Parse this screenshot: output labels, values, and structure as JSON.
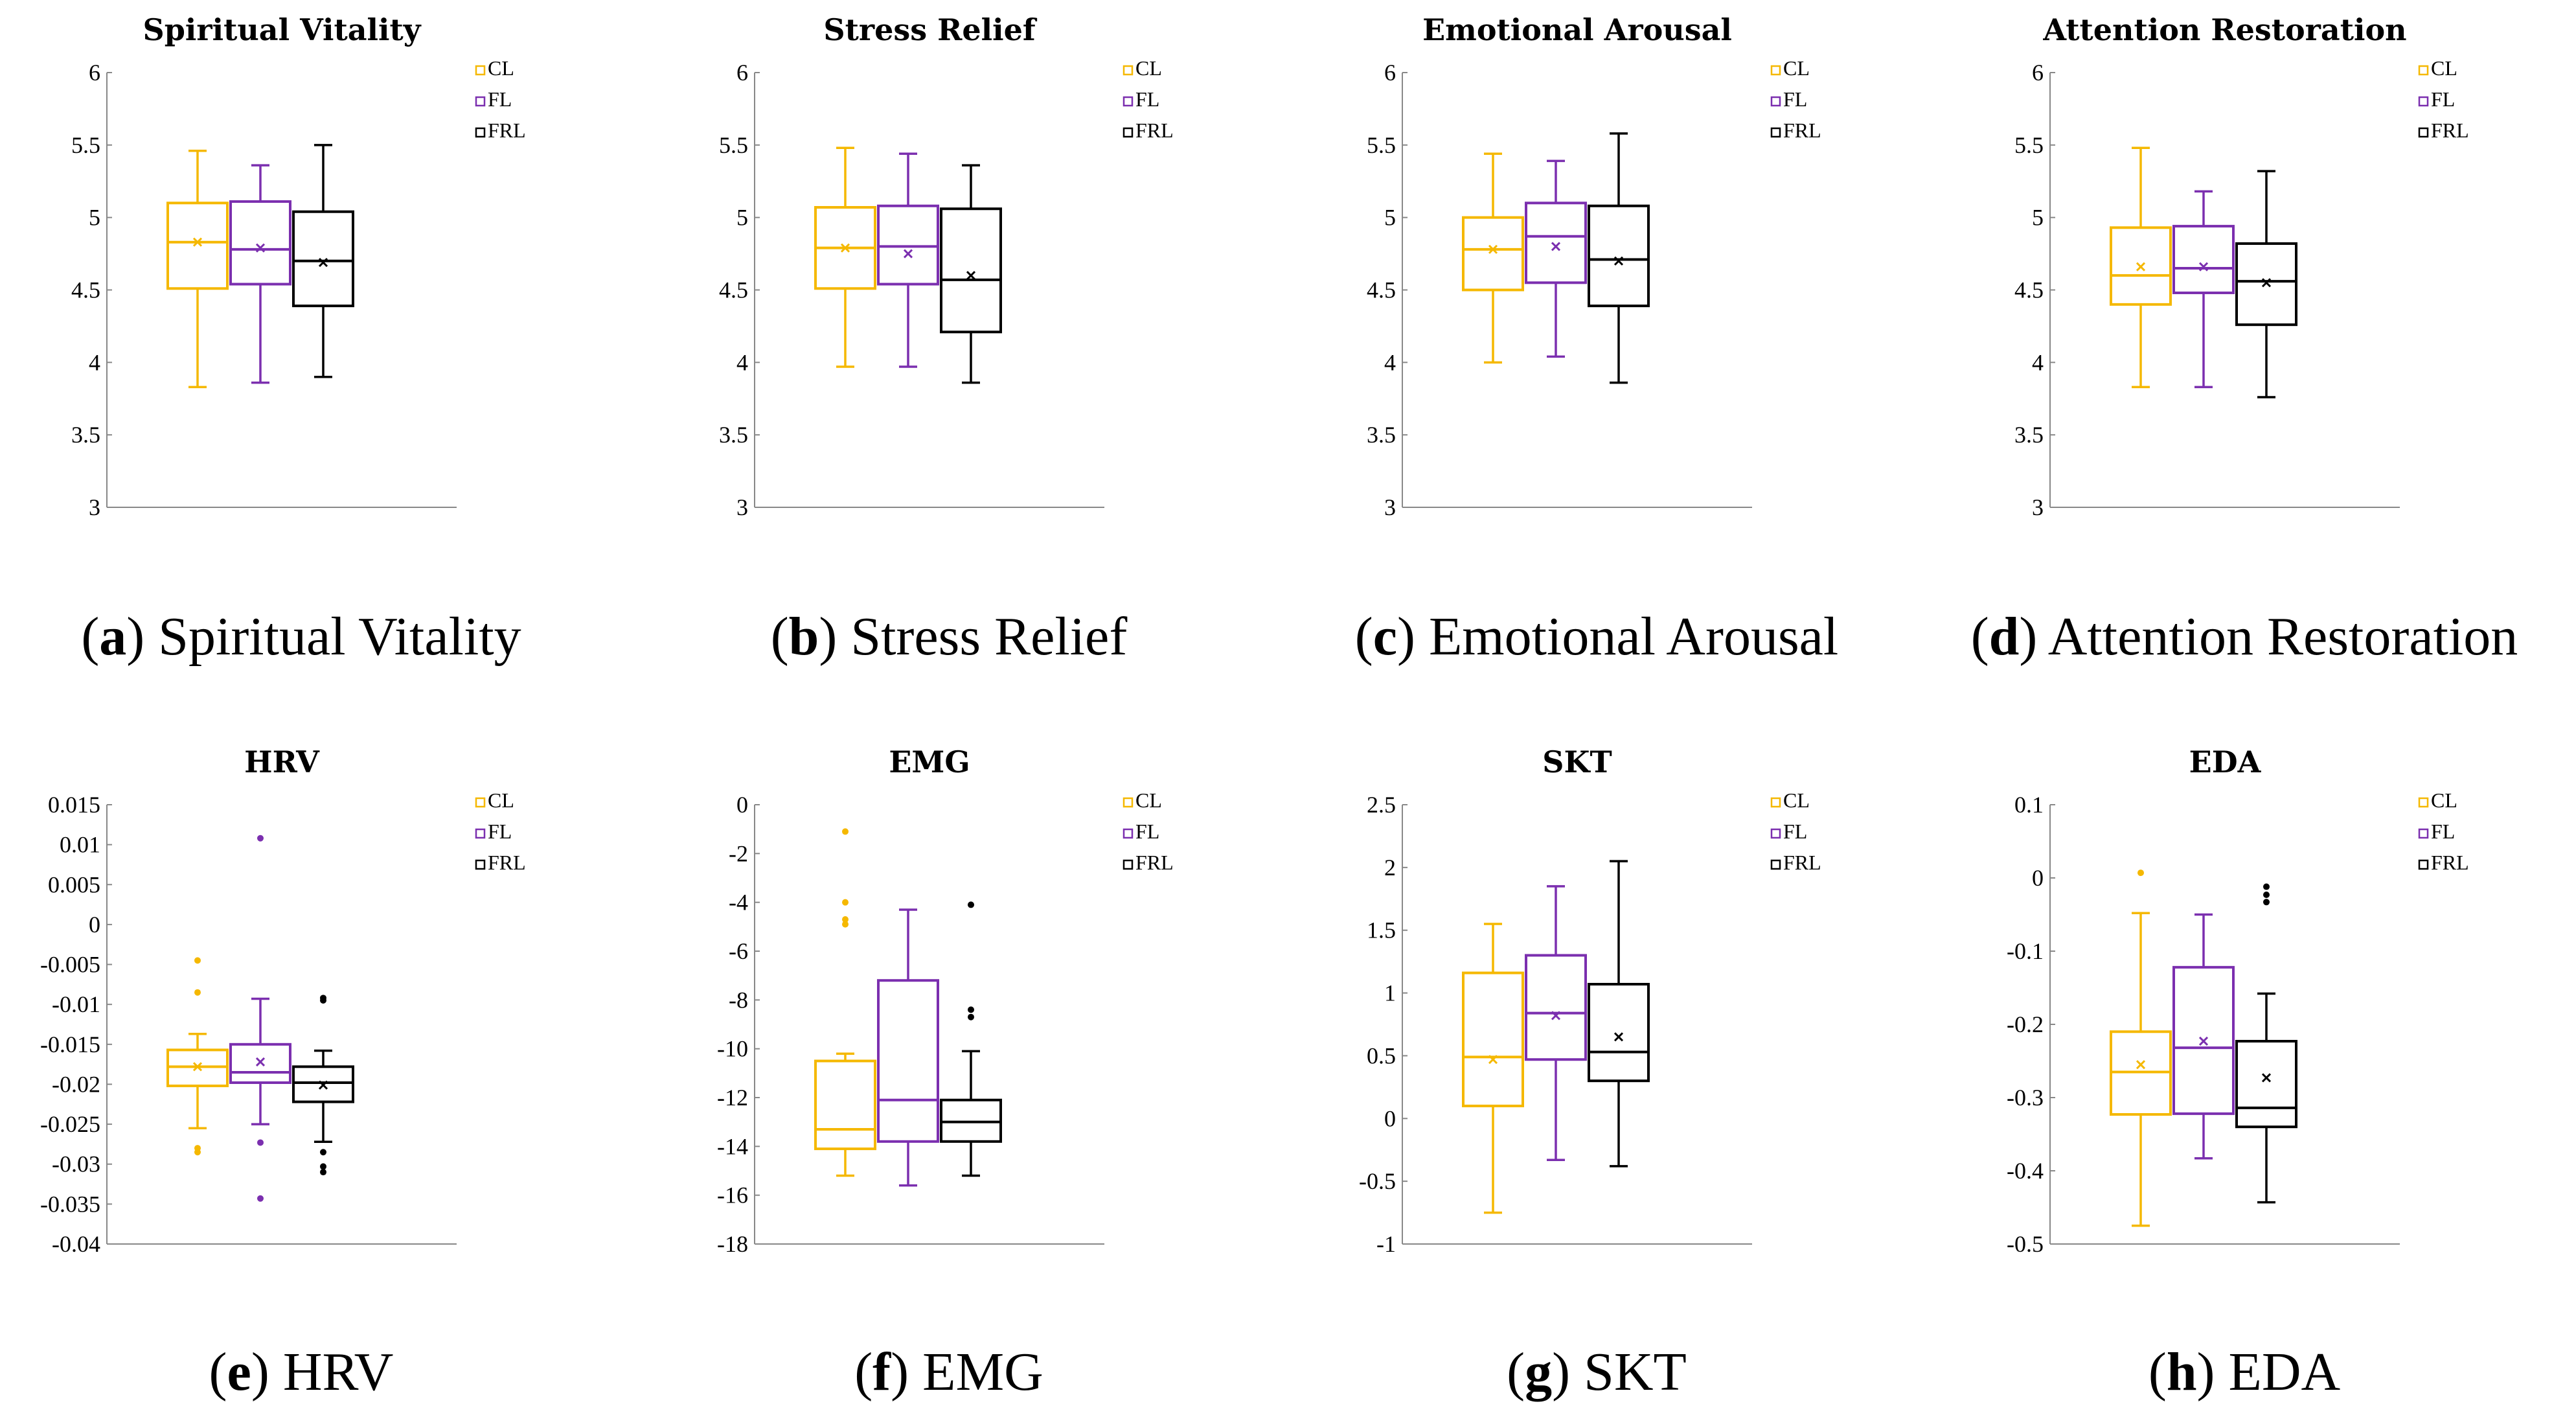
{
  "colors": {
    "CL": "#F5B800",
    "FL": "#7B2FAF",
    "FRL": "#000000"
  },
  "legend": [
    "CL",
    "FL",
    "FRL"
  ],
  "chart_data": [
    {
      "type": "box",
      "title": "Spiritual Vitality",
      "caption": {
        "letter": "a",
        "text": "Spiritual Vitality"
      },
      "ylim": [
        3,
        6
      ],
      "yticks": [
        "3",
        "3.5",
        "4",
        "4.5",
        "5",
        "5.5",
        "6"
      ],
      "series": [
        {
          "name": "CL",
          "whisker_low": 3.83,
          "q1": 4.51,
          "median": 4.83,
          "q3": 5.1,
          "whisker_high": 5.46,
          "mean": 4.83,
          "outliers": []
        },
        {
          "name": "FL",
          "whisker_low": 3.86,
          "q1": 4.54,
          "median": 4.78,
          "q3": 5.11,
          "whisker_high": 5.36,
          "mean": 4.79,
          "outliers": []
        },
        {
          "name": "FRL",
          "whisker_low": 3.9,
          "q1": 4.39,
          "median": 4.7,
          "q3": 5.04,
          "whisker_high": 5.5,
          "mean": 4.69,
          "outliers": []
        }
      ]
    },
    {
      "type": "box",
      "title": "Stress Relief",
      "caption": {
        "letter": "b",
        "text": "Stress Relief"
      },
      "ylim": [
        3,
        6
      ],
      "yticks": [
        "3",
        "3.5",
        "4",
        "4.5",
        "5",
        "5.5",
        "6"
      ],
      "series": [
        {
          "name": "CL",
          "whisker_low": 3.97,
          "q1": 4.51,
          "median": 4.79,
          "q3": 5.07,
          "whisker_high": 5.48,
          "mean": 4.79,
          "outliers": []
        },
        {
          "name": "FL",
          "whisker_low": 3.97,
          "q1": 4.54,
          "median": 4.8,
          "q3": 5.08,
          "whisker_high": 5.44,
          "mean": 4.75,
          "outliers": []
        },
        {
          "name": "FRL",
          "whisker_low": 3.86,
          "q1": 4.21,
          "median": 4.57,
          "q3": 5.06,
          "whisker_high": 5.36,
          "mean": 4.6,
          "outliers": []
        }
      ]
    },
    {
      "type": "box",
      "title": "Emotional Arousal",
      "caption": {
        "letter": "c",
        "text": "Emotional Arousal"
      },
      "ylim": [
        3,
        6
      ],
      "yticks": [
        "3",
        "3.5",
        "4",
        "4.5",
        "5",
        "5.5",
        "6"
      ],
      "series": [
        {
          "name": "CL",
          "whisker_low": 4.0,
          "q1": 4.5,
          "median": 4.78,
          "q3": 5.0,
          "whisker_high": 5.44,
          "mean": 4.78,
          "outliers": []
        },
        {
          "name": "FL",
          "whisker_low": 4.04,
          "q1": 4.55,
          "median": 4.87,
          "q3": 5.1,
          "whisker_high": 5.39,
          "mean": 4.8,
          "outliers": []
        },
        {
          "name": "FRL",
          "whisker_low": 3.86,
          "q1": 4.39,
          "median": 4.71,
          "q3": 5.08,
          "whisker_high": 5.58,
          "mean": 4.7,
          "outliers": []
        }
      ]
    },
    {
      "type": "box",
      "title": "Attention Restoration",
      "caption": {
        "letter": "d",
        "text": "Attention Restoration"
      },
      "ylim": [
        3,
        6
      ],
      "yticks": [
        "3",
        "3.5",
        "4",
        "4.5",
        "5",
        "5.5",
        "6"
      ],
      "series": [
        {
          "name": "CL",
          "whisker_low": 3.83,
          "q1": 4.4,
          "median": 4.6,
          "q3": 4.93,
          "whisker_high": 5.48,
          "mean": 4.66,
          "outliers": []
        },
        {
          "name": "FL",
          "whisker_low": 3.83,
          "q1": 4.48,
          "median": 4.65,
          "q3": 4.94,
          "whisker_high": 5.18,
          "mean": 4.66,
          "outliers": []
        },
        {
          "name": "FRL",
          "whisker_low": 3.76,
          "q1": 4.26,
          "median": 4.56,
          "q3": 4.82,
          "whisker_high": 5.32,
          "mean": 4.55,
          "outliers": []
        }
      ]
    },
    {
      "type": "box",
      "title": "HRV",
      "caption": {
        "letter": "e",
        "text": "HRV"
      },
      "ylim": [
        -0.04,
        0.015
      ],
      "yticks": [
        "-0.04",
        "-0.035",
        "-0.03",
        "-0.025",
        "-0.02",
        "-0.015",
        "-0.01",
        "-0.005",
        "0",
        "0.005",
        "0.01",
        "0.015"
      ],
      "series": [
        {
          "name": "CL",
          "whisker_low": -0.0255,
          "q1": -0.0202,
          "median": -0.0178,
          "q3": -0.0157,
          "whisker_high": -0.0137,
          "mean": -0.0178,
          "outliers": [
            -0.0045,
            -0.0085,
            -0.028,
            -0.0285
          ]
        },
        {
          "name": "FL",
          "whisker_low": -0.025,
          "q1": -0.0198,
          "median": -0.0185,
          "q3": -0.015,
          "whisker_high": -0.0093,
          "mean": -0.0172,
          "outliers": [
            0.0108,
            -0.0273,
            -0.0343
          ]
        },
        {
          "name": "FRL",
          "whisker_low": -0.0272,
          "q1": -0.0222,
          "median": -0.0198,
          "q3": -0.0178,
          "whisker_high": -0.0158,
          "mean": -0.0201,
          "outliers": [
            -0.0092,
            -0.0095,
            -0.0285,
            -0.0303,
            -0.031
          ]
        }
      ]
    },
    {
      "type": "box",
      "title": "EMG",
      "caption": {
        "letter": "f",
        "text": "EMG"
      },
      "ylim": [
        -18,
        0
      ],
      "yticks": [
        "-18",
        "-16",
        "-14",
        "-12",
        "-10",
        "-8",
        "-6",
        "-4",
        "-2",
        "0"
      ],
      "series": [
        {
          "name": "CL",
          "whisker_low": -15.2,
          "q1": -14.1,
          "median": -13.3,
          "q3": -10.5,
          "whisker_high": -10.2,
          "mean": null,
          "outliers": [
            -1.1,
            -4.0,
            -4.7,
            -4.9
          ]
        },
        {
          "name": "FL",
          "whisker_low": -15.6,
          "q1": -13.8,
          "median": -12.1,
          "q3": -7.2,
          "whisker_high": -4.3,
          "mean": null,
          "outliers": []
        },
        {
          "name": "FRL",
          "whisker_low": -15.2,
          "q1": -13.8,
          "median": -13.0,
          "q3": -12.1,
          "whisker_high": -10.1,
          "mean": null,
          "outliers": [
            -4.1,
            -8.4,
            -8.7
          ]
        }
      ]
    },
    {
      "type": "box",
      "title": "SKT",
      "caption": {
        "letter": "g",
        "text": "SKT"
      },
      "ylim": [
        -1,
        2.5
      ],
      "yticks": [
        "-1",
        "-0.5",
        "0",
        "0.5",
        "1",
        "1.5",
        "2",
        "2.5"
      ],
      "series": [
        {
          "name": "CL",
          "whisker_low": -0.75,
          "q1": 0.1,
          "median": 0.49,
          "q3": 1.16,
          "whisker_high": 1.55,
          "mean": 0.47,
          "outliers": []
        },
        {
          "name": "FL",
          "whisker_low": -0.33,
          "q1": 0.47,
          "median": 0.84,
          "q3": 1.3,
          "whisker_high": 1.85,
          "mean": 0.82,
          "outliers": []
        },
        {
          "name": "FRL",
          "whisker_low": -0.38,
          "q1": 0.3,
          "median": 0.53,
          "q3": 1.07,
          "whisker_high": 2.05,
          "mean": 0.65,
          "outliers": []
        }
      ]
    },
    {
      "type": "box",
      "title": "EDA",
      "caption": {
        "letter": "h",
        "text": "EDA"
      },
      "ylim": [
        -0.5,
        0.1
      ],
      "yticks": [
        "-0.5",
        "-0.4",
        "-0.3",
        "-0.2",
        "-0.1",
        "0",
        "0.1"
      ],
      "series": [
        {
          "name": "CL",
          "whisker_low": -0.475,
          "q1": -0.323,
          "median": -0.265,
          "q3": -0.21,
          "whisker_high": -0.048,
          "mean": -0.255,
          "outliers": [
            0.007
          ]
        },
        {
          "name": "FL",
          "whisker_low": -0.383,
          "q1": -0.322,
          "median": -0.232,
          "q3": -0.122,
          "whisker_high": -0.05,
          "mean": -0.223,
          "outliers": []
        },
        {
          "name": "FRL",
          "whisker_low": -0.443,
          "q1": -0.34,
          "median": -0.314,
          "q3": -0.223,
          "whisker_high": -0.158,
          "mean": -0.273,
          "outliers": [
            -0.012,
            -0.023,
            -0.033
          ]
        }
      ]
    }
  ]
}
